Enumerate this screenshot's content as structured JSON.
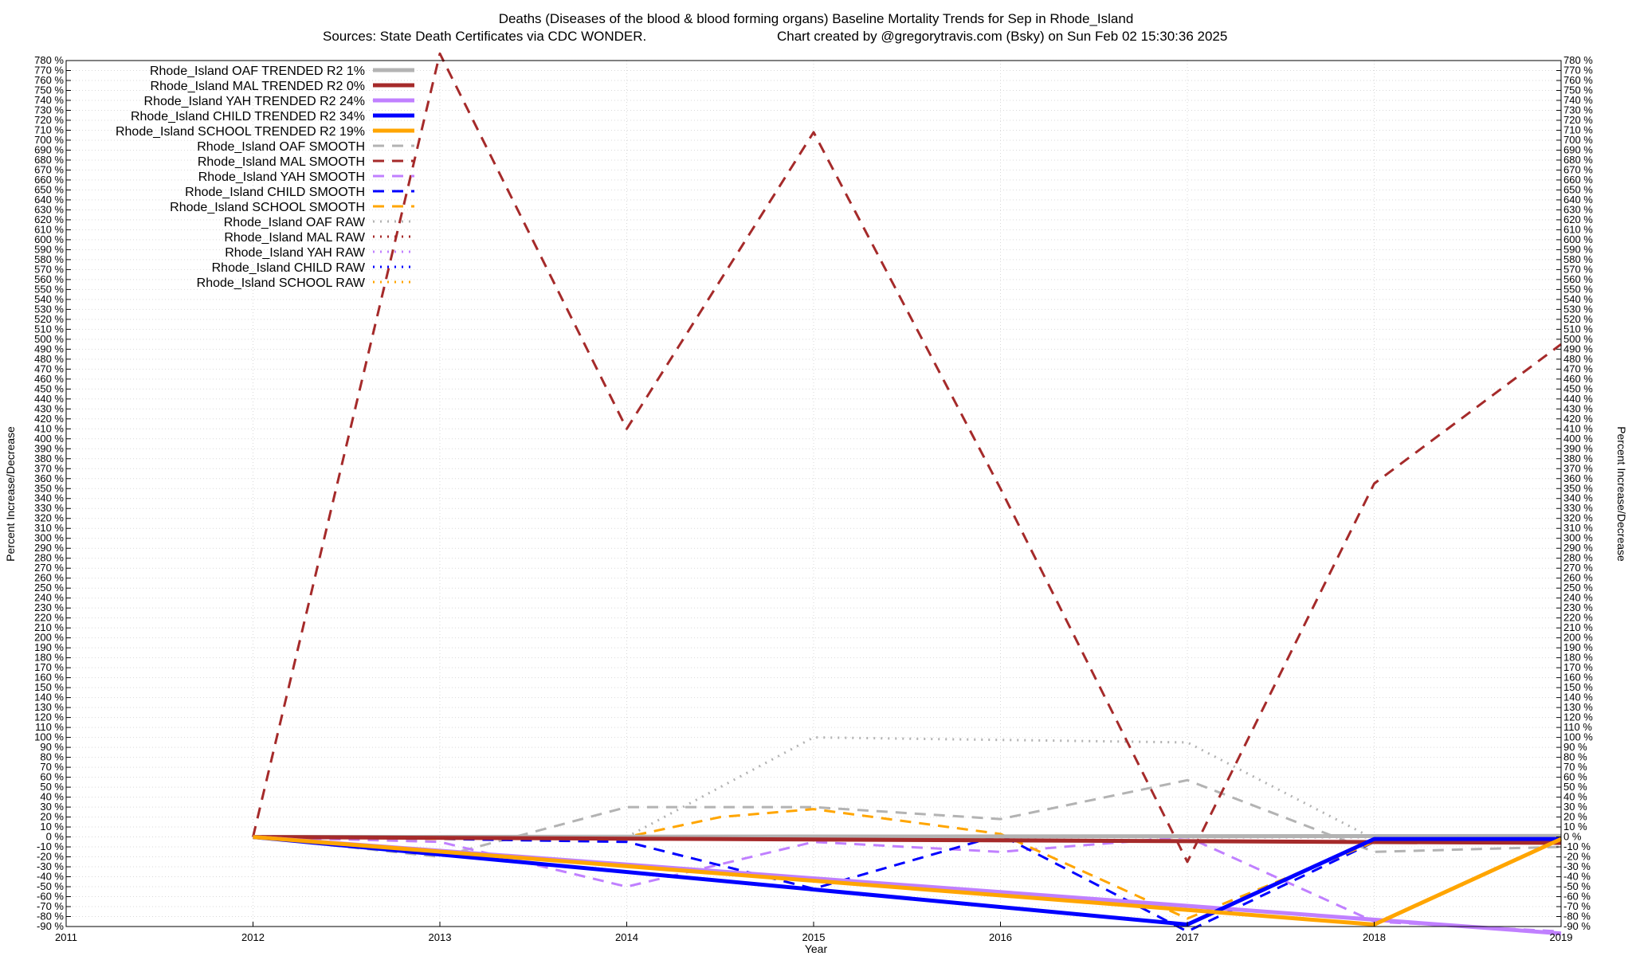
{
  "chart_data": {
    "type": "line",
    "title": "Deaths (Diseases of the blood & blood forming organs)  Baseline Mortality Trends for Sep in Rhode_Island",
    "subtitle_left": "Sources: State Death Certificates via CDC WONDER.",
    "subtitle_right": "Chart created by @gregorytravis.com (Bsky) on Sun Feb 02 15:30:36 2025",
    "xlabel": "Year",
    "ylabel_left": "Percent Increase/Decrease",
    "ylabel_right": "Percent Increase/Decrease",
    "xlim": [
      2011,
      2019
    ],
    "ylim": [
      -90,
      780
    ],
    "y_tick_step": 10,
    "y_tick_suffix": " %",
    "x_ticks": [
      "2011",
      "2012",
      "2013",
      "2014",
      "2015",
      "2016",
      "2017",
      "2018",
      "2019"
    ],
    "grid": true,
    "legend_position": "top-left",
    "series": [
      {
        "name": "Rhode_Island OAF TRENDED R2  1%",
        "color": "#b3b3b3",
        "style": "solid",
        "width": 5,
        "x": [
          2012,
          2019
        ],
        "y": [
          0,
          1
        ]
      },
      {
        "name": "Rhode_Island MAL TRENDED R2  0%",
        "color": "#a52a2a",
        "style": "solid",
        "width": 5,
        "x": [
          2012,
          2019
        ],
        "y": [
          0,
          -6
        ]
      },
      {
        "name": "Rhode_Island YAH TRENDED R2  24%",
        "color": "#c080ff",
        "style": "solid",
        "width": 5,
        "x": [
          2012,
          2019
        ],
        "y": [
          0,
          -97
        ]
      },
      {
        "name": "Rhode_Island CHILD TRENDED R2  34%",
        "color": "#0000ff",
        "style": "solid",
        "width": 5,
        "x": [
          2012,
          2017,
          2018,
          2019
        ],
        "y": [
          0,
          -88,
          -2,
          -2
        ]
      },
      {
        "name": "Rhode_Island SCHOOL TRENDED R2  19%",
        "color": "#ffa500",
        "style": "solid",
        "width": 5,
        "x": [
          2012,
          2018,
          2019
        ],
        "y": [
          0,
          -88,
          -2
        ]
      },
      {
        "name": "Rhode_Island OAF SMOOTH",
        "color": "#b3b3b3",
        "style": "dashed",
        "width": 3,
        "x": [
          2012,
          2013,
          2014,
          2015,
          2016,
          2017,
          2018,
          2019
        ],
        "y": [
          0,
          -20,
          30,
          30,
          18,
          57,
          -15,
          -10
        ]
      },
      {
        "name": "Rhode_Island MAL SMOOTH",
        "color": "#a52a2a",
        "style": "dashed",
        "width": 3,
        "x": [
          2012,
          2013,
          2014,
          2015,
          2016,
          2017,
          2018,
          2019
        ],
        "y": [
          0,
          787,
          410,
          708,
          350,
          -25,
          355,
          495
        ]
      },
      {
        "name": "Rhode_Island YAH SMOOTH",
        "color": "#c080ff",
        "style": "dashed",
        "width": 3,
        "x": [
          2012,
          2013,
          2014,
          2015,
          2016,
          2017,
          2018,
          2019
        ],
        "y": [
          0,
          -5,
          -50,
          -5,
          -15,
          0,
          -85,
          -95
        ]
      },
      {
        "name": "Rhode_Island CHILD SMOOTH",
        "color": "#0000ff",
        "style": "dashed",
        "width": 3,
        "x": [
          2012,
          2013,
          2014,
          2015,
          2016,
          2017,
          2018,
          2019
        ],
        "y": [
          0,
          -2,
          -5,
          -52,
          2,
          -95,
          -5,
          -2
        ]
      },
      {
        "name": "Rhode_Island SCHOOL SMOOTH",
        "color": "#ffa500",
        "style": "dashed",
        "width": 3,
        "x": [
          2012,
          2013,
          2014,
          2014.5,
          2015,
          2016,
          2017,
          2018,
          2019
        ],
        "y": [
          0,
          -2,
          0,
          20,
          28,
          3,
          -82,
          -5,
          -2
        ]
      },
      {
        "name": "Rhode_Island OAF RAW",
        "color": "#b3b3b3",
        "style": "dotted",
        "width": 3,
        "x": [
          2012,
          2014,
          2015,
          2017,
          2018,
          2019
        ],
        "y": [
          0,
          0,
          100,
          95,
          -2,
          -2
        ]
      },
      {
        "name": "Rhode_Island MAL RAW",
        "color": "#a52a2a",
        "style": "dotted",
        "width": 3,
        "x": [
          2012,
          2019
        ],
        "y": [
          0,
          0
        ]
      },
      {
        "name": "Rhode_Island YAH RAW",
        "color": "#c080ff",
        "style": "dotted",
        "width": 3,
        "x": [
          2012,
          2019
        ],
        "y": [
          0,
          0
        ]
      },
      {
        "name": "Rhode_Island CHILD RAW",
        "color": "#0000ff",
        "style": "dotted",
        "width": 3,
        "x": [
          2012,
          2019
        ],
        "y": [
          0,
          0
        ]
      },
      {
        "name": "Rhode_Island SCHOOL RAW",
        "color": "#ffa500",
        "style": "dotted",
        "width": 3,
        "x": [
          2012,
          2019
        ],
        "y": [
          0,
          0
        ]
      }
    ]
  }
}
